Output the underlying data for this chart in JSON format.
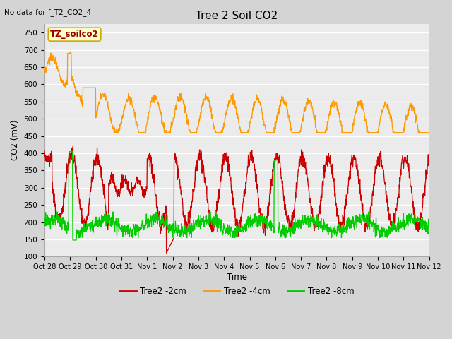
{
  "title": "Tree 2 Soil CO2",
  "no_data_text": "No data for f_T2_CO2_4",
  "ylabel": "CO2 (mV)",
  "xlabel": "Time",
  "legend_box_text": "TZ_soilco2",
  "ylim": [
    100,
    775
  ],
  "yticks": [
    100,
    150,
    200,
    250,
    300,
    350,
    400,
    450,
    500,
    550,
    600,
    650,
    700,
    750
  ],
  "xtick_labels": [
    "Oct 28",
    "Oct 29",
    "Oct 30",
    "Oct 31",
    "Nov 1",
    "Nov 2",
    "Nov 3",
    "Nov 4",
    "Nov 5",
    "Nov 6",
    "Nov 7",
    "Nov 8",
    "Nov 9",
    "Nov 10",
    "Nov 11",
    "Nov 12"
  ],
  "color_2cm": "#cc0000",
  "color_4cm": "#ff9900",
  "color_8cm": "#00cc00",
  "legend_labels": [
    "Tree2 -2cm",
    "Tree2 -4cm",
    "Tree2 -8cm"
  ],
  "fig_bg_color": "#d4d4d4",
  "plot_bg_color": "#ebebeb"
}
